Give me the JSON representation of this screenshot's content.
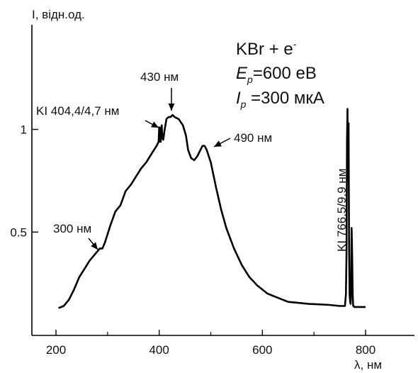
{
  "chart_data": {
    "type": "line",
    "title": "",
    "xlabel": "λ, нм",
    "ylabel": "I, відн.од.",
    "xlim": [
      150,
      880
    ],
    "ylim": [
      0.0,
      1.3
    ],
    "xticks": [
      200,
      400,
      600,
      800
    ],
    "xtick_labels": [
      "200",
      "400",
      "600",
      "800"
    ],
    "yticks": [
      0.5,
      1.0
    ],
    "ytick_labels": [
      "0.5",
      "1"
    ],
    "grid": false,
    "legend": {
      "line1": "KBr + e",
      "line1_sup": "-",
      "line2_sym": "E",
      "line2_sub": "p",
      "line2_rest": "=600 eВ",
      "line3_sym": "I",
      "line3_sub": "p",
      "line3_rest": " =300 мкА"
    },
    "annotations": [
      {
        "text": "KI 404,4/4,7 нм",
        "x": 403,
        "y": 1.02
      },
      {
        "text": "430 нм",
        "x": 425,
        "y": 1.08
      },
      {
        "text": "490 нм",
        "x": 485,
        "y": 0.91
      },
      {
        "text": "300 нм",
        "x": 290,
        "y": 0.42
      },
      {
        "text": "KI 766,5/9,9 нм",
        "x": 767,
        "y": 0.25
      }
    ],
    "series": [
      {
        "color": "#000000",
        "x": [
          205,
          215,
          225,
          235,
          245,
          255,
          265,
          275,
          285,
          290,
          295,
          305,
          315,
          325,
          335,
          345,
          355,
          365,
          375,
          385,
          395,
          399,
          400,
          401,
          402,
          403,
          404,
          405,
          406,
          408,
          410,
          414,
          418,
          422,
          426,
          430,
          438,
          446,
          452,
          456,
          462,
          468,
          474,
          480,
          484,
          488,
          492,
          500,
          510,
          520,
          530,
          545,
          560,
          575,
          590,
          610,
          630,
          650,
          670,
          690,
          710,
          730,
          750,
          760,
          762,
          763,
          764,
          765,
          766,
          767,
          768,
          769,
          770,
          771,
          772,
          773,
          774,
          775,
          776,
          777,
          778,
          780,
          790,
          800
        ],
        "y": [
          0.13,
          0.14,
          0.17,
          0.22,
          0.28,
          0.32,
          0.36,
          0.39,
          0.42,
          0.42,
          0.45,
          0.53,
          0.6,
          0.63,
          0.7,
          0.73,
          0.77,
          0.81,
          0.84,
          0.88,
          0.92,
          0.94,
          1.01,
          1.01,
          0.94,
          0.94,
          0.99,
          1.02,
          0.96,
          0.95,
          0.99,
          1.05,
          1.06,
          1.06,
          1.07,
          1.06,
          1.05,
          1.02,
          0.97,
          0.9,
          0.86,
          0.85,
          0.87,
          0.9,
          0.92,
          0.92,
          0.9,
          0.84,
          0.72,
          0.61,
          0.52,
          0.42,
          0.34,
          0.28,
          0.24,
          0.2,
          0.18,
          0.16,
          0.155,
          0.15,
          0.148,
          0.145,
          0.14,
          0.14,
          0.2,
          0.4,
          0.95,
          1.1,
          0.75,
          1.03,
          0.45,
          0.2,
          0.16,
          0.15,
          0.22,
          0.52,
          0.38,
          0.2,
          0.14,
          0.14,
          0.135,
          0.135,
          0.135,
          0.135
        ]
      }
    ]
  }
}
